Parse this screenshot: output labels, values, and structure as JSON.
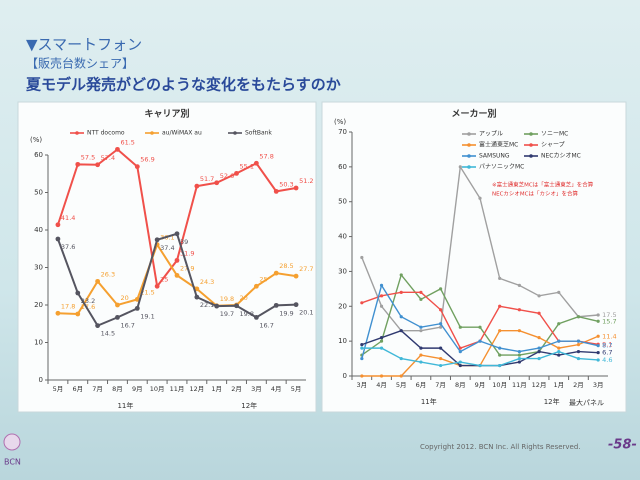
{
  "slide": {
    "section": "▼スマートフォン",
    "subtitle": "【販売台数シェア】",
    "headline": "夏モデル発売がどのような変化をもたらすのか",
    "copyright": "Copyright 2012. BCN Inc. All Rights Reserved.",
    "page": "-58-",
    "logo": "BCN"
  },
  "chart_data": [
    {
      "type": "line",
      "title": "キャリア別",
      "y_label": "(%)",
      "legend": "top",
      "data_labels": "all",
      "categories": [
        "5月",
        "6月",
        "7月",
        "8月",
        "9月",
        "10月",
        "11月",
        "12月",
        "1月",
        "2月",
        "3月",
        "4月",
        "5月"
      ],
      "year_labels": [
        "11年",
        "12年"
      ],
      "ylim": [
        0,
        60
      ],
      "yticks": [
        0,
        10,
        20,
        30,
        40,
        50,
        60
      ],
      "series": [
        {
          "name": "NTT docomo",
          "color": "#f0504a",
          "values": [
            41.4,
            57.5,
            57.4,
            61.5,
            56.9,
            25.0,
            31.9,
            51.7,
            52.6,
            55.1,
            57.8,
            50.3,
            51.2
          ]
        },
        {
          "name": "au/WiMAX au",
          "color": "#f5a030",
          "values": [
            17.8,
            17.6,
            26.3,
            20.0,
            21.5,
            36.1,
            27.9,
            24.3,
            19.8,
            20.0,
            25.0,
            28.5,
            27.7
          ]
        },
        {
          "name": "SoftBank",
          "color": "#555560",
          "values": [
            37.6,
            23.2,
            14.5,
            16.7,
            19.1,
            37.4,
            39.0,
            22.1,
            19.7,
            19.8,
            16.7,
            19.9,
            20.1
          ]
        }
      ]
    },
    {
      "type": "line",
      "title": "メーカー別",
      "y_label": "(%)",
      "legend": "top-right",
      "data_labels": "last",
      "note": "最大パネル",
      "annotations": [
        "※富士通東芝MCは「富士通東芝」を合算",
        "NECカシオMCは「カシオ」を合算"
      ],
      "categories": [
        "3月",
        "4月",
        "5月",
        "6月",
        "7月",
        "8月",
        "9月",
        "10月",
        "11月",
        "12月",
        "1月",
        "2月",
        "3月"
      ],
      "year_labels": [
        "11年",
        "12年"
      ],
      "ylim": [
        0,
        70
      ],
      "yticks": [
        0,
        10,
        20,
        30,
        40,
        50,
        60,
        70
      ],
      "series": [
        {
          "name": "アップル",
          "color": "#a0a0a0",
          "values": [
            34,
            20,
            13,
            13,
            14,
            60,
            51,
            28,
            26,
            23,
            24,
            17,
            17.5
          ]
        },
        {
          "name": "ソニーMC",
          "color": "#70a060",
          "values": [
            6,
            10,
            29,
            22,
            25,
            14,
            14,
            6,
            6,
            7,
            15,
            17,
            15.7
          ]
        },
        {
          "name": "富士通東芝MC",
          "color": "#f59030",
          "values": [
            0,
            0,
            0,
            6,
            5,
            3,
            3,
            13,
            13,
            11,
            8,
            9,
            11.4
          ]
        },
        {
          "name": "シャープ",
          "color": "#f0504a",
          "values": [
            21,
            23,
            24,
            24,
            19,
            8,
            10,
            20,
            19,
            18,
            10,
            10,
            9.1
          ]
        },
        {
          "name": "SAMSUNG",
          "color": "#4090d0",
          "values": [
            5,
            26,
            17,
            14,
            15,
            7,
            10,
            8,
            7,
            8,
            10,
            10,
            8.7
          ]
        },
        {
          "name": "NECカシオMC",
          "color": "#303a70",
          "values": [
            9,
            11,
            13,
            8,
            8,
            3,
            3,
            3,
            4,
            7,
            6,
            7,
            6.7
          ]
        },
        {
          "name": "パナソニックMC",
          "color": "#40b8d8",
          "values": [
            8,
            8,
            5,
            4,
            3,
            4,
            3,
            3,
            5,
            5,
            7,
            5,
            4.6
          ]
        }
      ]
    }
  ]
}
